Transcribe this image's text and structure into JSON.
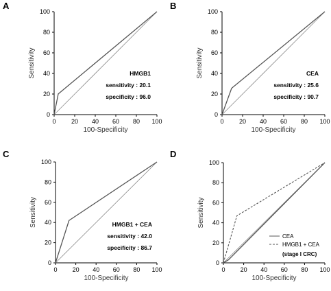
{
  "chart_data": [
    {
      "type": "line",
      "panel": "A",
      "xlabel": "100-Specificity",
      "ylabel": "Sensitivity",
      "xlim": [
        0,
        100
      ],
      "ylim": [
        0,
        100
      ],
      "xticks": [
        0,
        20,
        40,
        60,
        80,
        100
      ],
      "yticks": [
        0,
        20,
        40,
        60,
        80,
        100
      ],
      "series": [
        {
          "style": "diagonal",
          "x": [
            0,
            100
          ],
          "y": [
            0,
            100
          ]
        },
        {
          "style": "solid",
          "x": [
            0,
            4.0,
            100
          ],
          "y": [
            0,
            20.1,
            100
          ]
        }
      ],
      "annotations": [
        "HMGB1",
        "sensitivity : 20.1",
        "specificity : 96.0"
      ]
    },
    {
      "type": "line",
      "panel": "B",
      "xlabel": "100-Specificity",
      "ylabel": "Sensitivity",
      "xlim": [
        0,
        100
      ],
      "ylim": [
        0,
        100
      ],
      "xticks": [
        0,
        20,
        40,
        60,
        80,
        100
      ],
      "yticks": [
        0,
        20,
        40,
        60,
        80,
        100
      ],
      "series": [
        {
          "style": "diagonal",
          "x": [
            0,
            100
          ],
          "y": [
            0,
            100
          ]
        },
        {
          "style": "solid",
          "x": [
            0,
            9.3,
            100
          ],
          "y": [
            0,
            25.6,
            100
          ]
        }
      ],
      "annotations": [
        "CEA",
        "sensitivity : 25.6",
        "specificity : 90.7"
      ]
    },
    {
      "type": "line",
      "panel": "C",
      "xlabel": "100-Specificity",
      "ylabel": "Sensitivity",
      "xlim": [
        0,
        100
      ],
      "ylim": [
        0,
        100
      ],
      "xticks": [
        0,
        20,
        40,
        60,
        80,
        100
      ],
      "yticks": [
        0,
        20,
        40,
        60,
        80,
        100
      ],
      "series": [
        {
          "style": "diagonal",
          "x": [
            0,
            100
          ],
          "y": [
            0,
            100
          ]
        },
        {
          "style": "solid",
          "x": [
            0,
            13.3,
            100
          ],
          "y": [
            0,
            42.0,
            100
          ]
        }
      ],
      "annotations": [
        "HMGB1 + CEA",
        "sensitivity : 42.0",
        "specificity : 86.7"
      ]
    },
    {
      "type": "line",
      "panel": "D",
      "xlabel": "100-Specificity",
      "ylabel": "Sensitivity",
      "xlim": [
        0,
        100
      ],
      "ylim": [
        0,
        100
      ],
      "xticks": [
        0,
        20,
        40,
        60,
        80,
        100
      ],
      "yticks": [
        0,
        20,
        40,
        60,
        80,
        100
      ],
      "series": [
        {
          "style": "diagonal",
          "x": [
            0,
            100
          ],
          "y": [
            0,
            100
          ]
        },
        {
          "name": "CEA",
          "style": "solid",
          "x": [
            0,
            5,
            100
          ],
          "y": [
            0,
            3,
            100
          ]
        },
        {
          "name": "HMGB1 + CEA",
          "style": "dashed",
          "x": [
            0,
            13.3,
            100
          ],
          "y": [
            0,
            47,
            100
          ]
        }
      ],
      "legend": [
        "CEA",
        "HMGB1 + CEA"
      ],
      "legend_note": "(stage I CRC)",
      "legend_position": "bottom-right"
    }
  ],
  "colors": {
    "roc": "#555555",
    "diagonal": "#8a8a8a",
    "axis": "#000000"
  }
}
